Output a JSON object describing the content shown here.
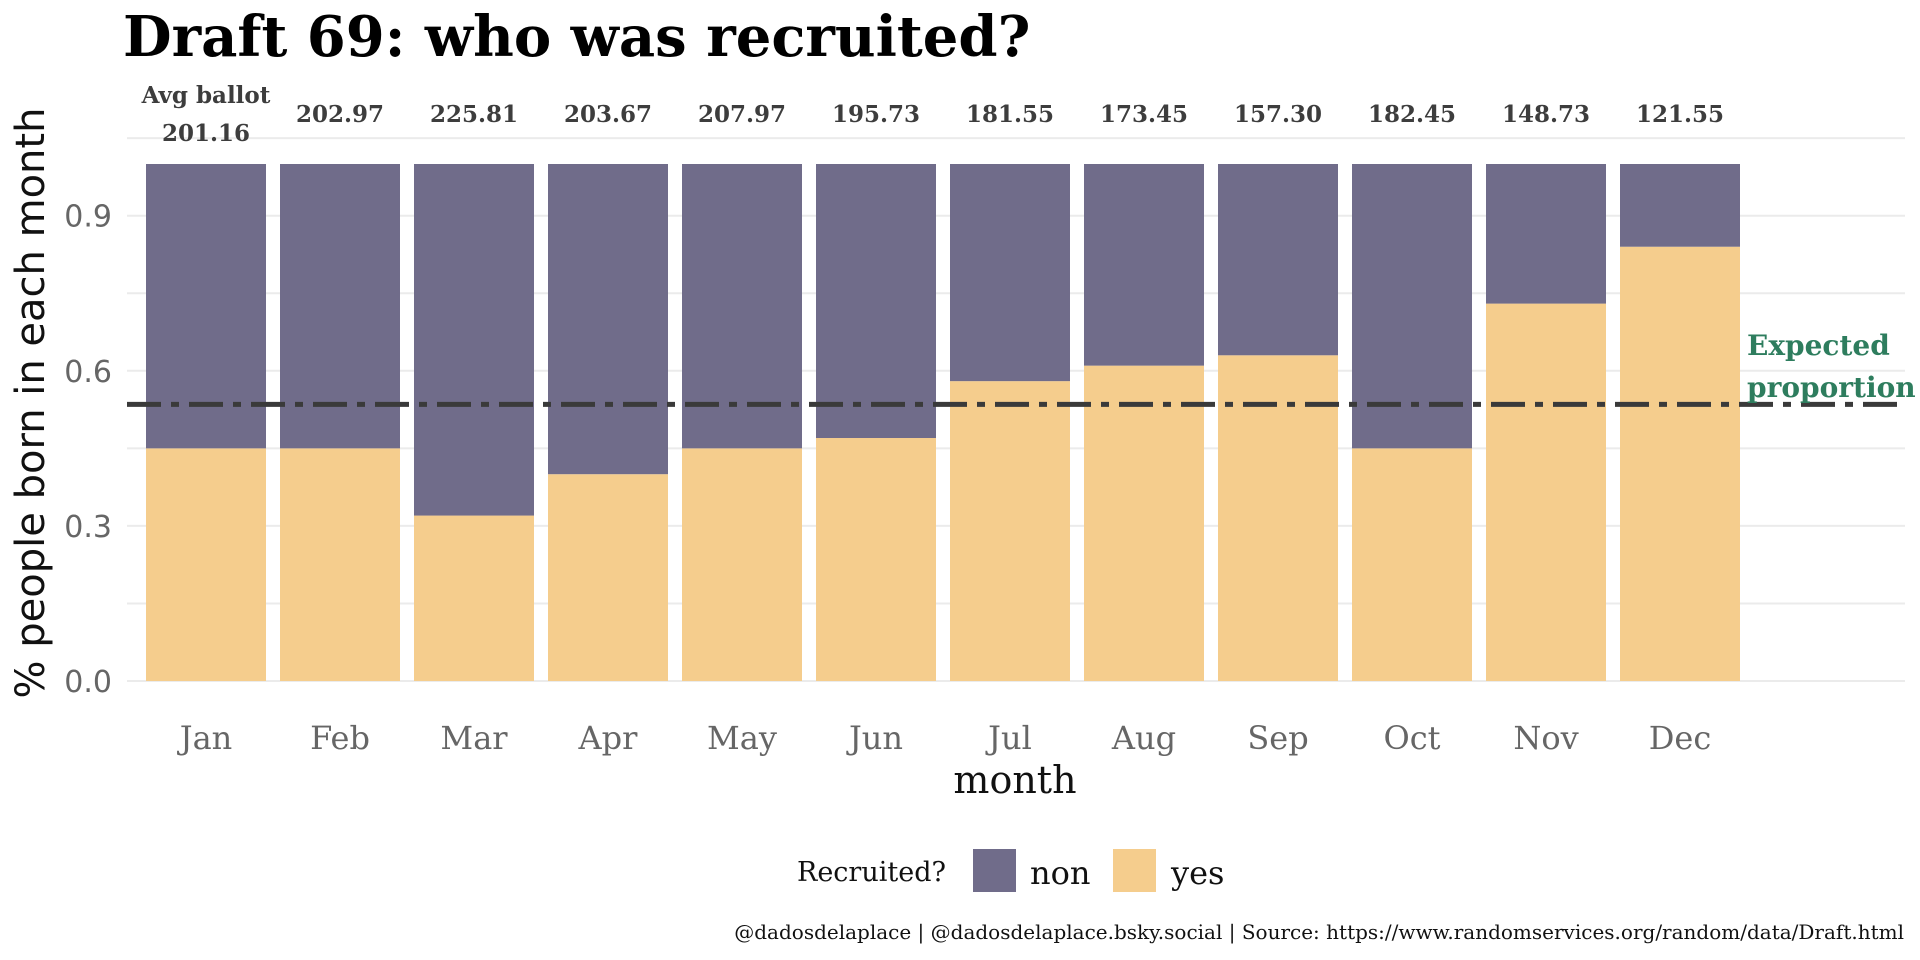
{
  "chart_data": {
    "type": "bar",
    "stacked": true,
    "title": "Draft 69: who was recruited?",
    "xlabel": "month",
    "ylabel": "% people born in each month",
    "ylim": [
      0,
      1
    ],
    "yticks": [
      "0.0",
      "0.3",
      "0.6",
      "0.9"
    ],
    "grid": true,
    "categories": [
      "Jan",
      "Feb",
      "Mar",
      "Apr",
      "May",
      "Jun",
      "Jul",
      "Aug",
      "Sep",
      "Oct",
      "Nov",
      "Dec"
    ],
    "series": [
      {
        "name": "yes",
        "color": "#f5cd8d",
        "values": [
          0.45,
          0.45,
          0.32,
          0.4,
          0.45,
          0.47,
          0.58,
          0.61,
          0.63,
          0.45,
          0.73,
          0.84
        ]
      },
      {
        "name": "non",
        "color": "#706c8a",
        "values": [
          0.55,
          0.55,
          0.68,
          0.6,
          0.55,
          0.53,
          0.42,
          0.39,
          0.37,
          0.55,
          0.27,
          0.16
        ]
      }
    ],
    "top_label_prefix": "Avg ballot",
    "top_labels": [
      "201.16",
      "202.97",
      "225.81",
      "203.67",
      "207.97",
      "195.73",
      "181.55",
      "173.45",
      "157.30",
      "182.45",
      "148.73",
      "121.55"
    ],
    "reference_line": {
      "value": 0.535,
      "style": "dash-dot",
      "color": "#3a3a3a",
      "label_line1": "Expected",
      "label_line2": "proportion",
      "label_color": "#2e7d5e"
    },
    "legend": {
      "title": "Recruited?",
      "position": "bottom",
      "entries": [
        "non",
        "yes"
      ]
    },
    "caption": "@dadosdelaplace | @dadosdelaplace.bsky.social | Source: https://www.randomservices.org/random/data/Draft.html"
  }
}
